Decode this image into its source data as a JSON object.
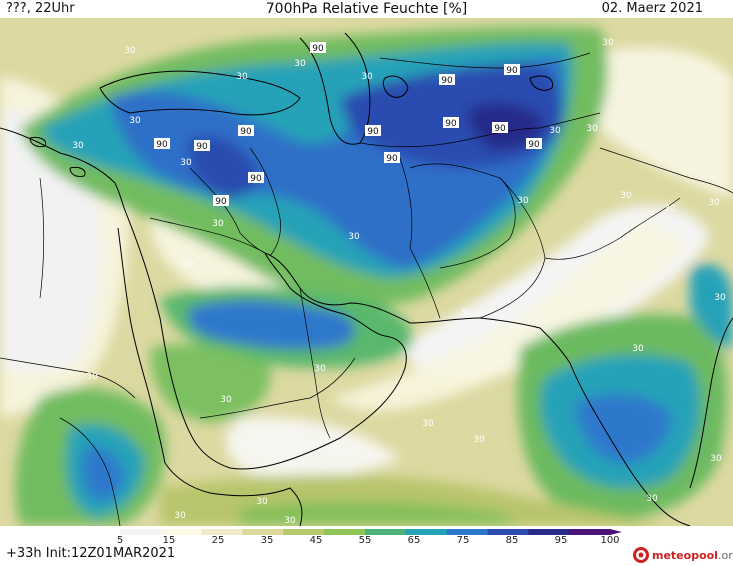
{
  "header": {
    "left": "???, 22Uhr",
    "title": "700hPa Relative Feuchte [%]",
    "date": "02. Maerz 2021"
  },
  "footer": {
    "run": "+33h Init:12Z01MAR2021"
  },
  "legend": {
    "ticks": [
      "5",
      "15",
      "25",
      "35",
      "45",
      "55",
      "65",
      "75",
      "85",
      "95",
      "100"
    ],
    "colors": [
      "#f4f4f4",
      "#fcf8e4",
      "#eeeaca",
      "#dcd79a",
      "#b6c86c",
      "#8ec456",
      "#4cb27a",
      "#24a2b6",
      "#2e78cc",
      "#2c4cb0",
      "#2a2a88",
      "#4a1478"
    ]
  },
  "contour_labels": [
    "90",
    "30"
  ],
  "logo": {
    "name": "meteopool",
    "suffix": ".org"
  }
}
